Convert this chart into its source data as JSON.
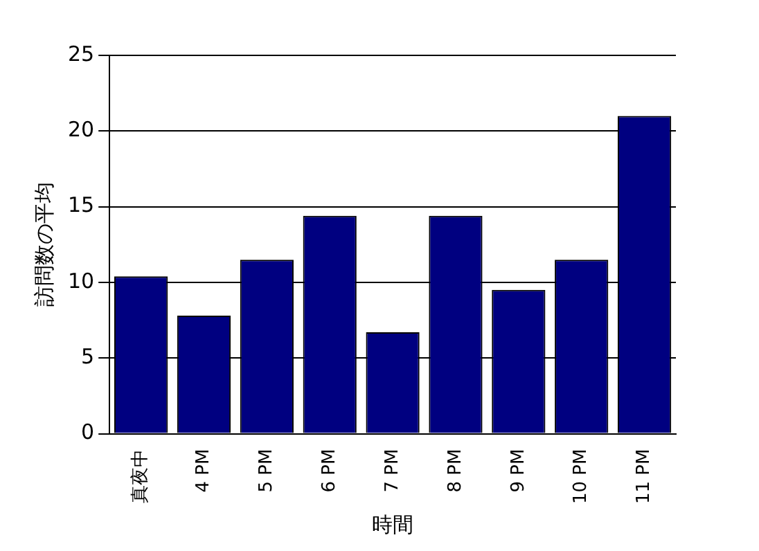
{
  "chart_data": {
    "type": "bar",
    "xlabel": "時間",
    "ylabel": "訪問数の平均",
    "categories": [
      "真夜中",
      "4 PM",
      "5 PM",
      "6 PM",
      "7 PM",
      "8 PM",
      "9 PM",
      "10 PM",
      "11 PM"
    ],
    "values": [
      10.4,
      7.8,
      11.5,
      14.4,
      6.7,
      14.4,
      9.5,
      11.5,
      21
    ],
    "color": "#000080",
    "ylim": [
      0,
      25
    ],
    "yticks": [
      0,
      5,
      10,
      15,
      20,
      25
    ],
    "grid": "y"
  }
}
